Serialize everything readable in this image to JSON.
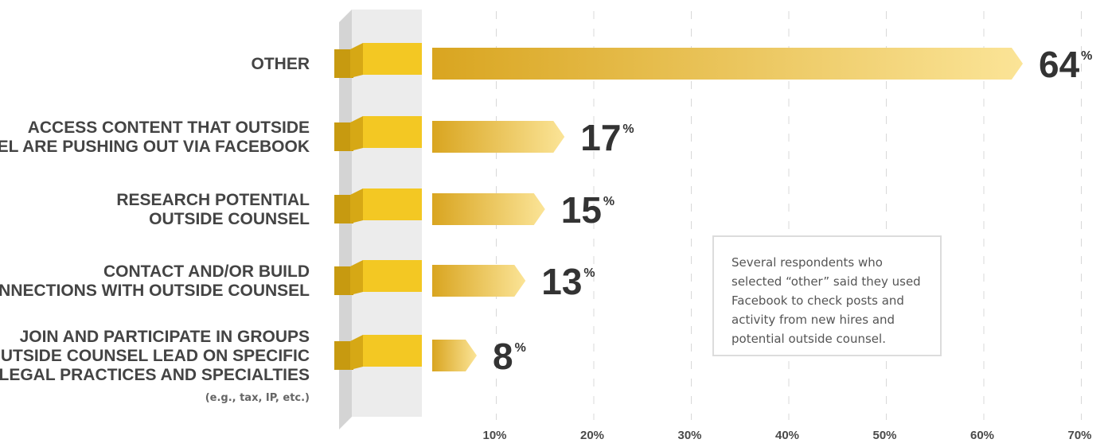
{
  "chart_data": {
    "type": "bar",
    "orientation": "horizontal",
    "categories": [
      {
        "lines": [
          "OTHER"
        ],
        "note": ""
      },
      {
        "lines": [
          "ACCESS CONTENT THAT OUTSIDE",
          "COUNSEL ARE PUSHING OUT VIA FACEBOOK"
        ],
        "note": ""
      },
      {
        "lines": [
          "RESEARCH POTENTIAL",
          "OUTSIDE COUNSEL"
        ],
        "note": ""
      },
      {
        "lines": [
          "CONTACT AND/OR BUILD",
          "CONNECTIONS WITH OUTSIDE COUNSEL"
        ],
        "note": ""
      },
      {
        "lines": [
          "JOIN AND PARTICIPATE IN GROUPS",
          "THAT OUTSIDE COUNSEL LEAD ON SPECIFIC",
          "LEGAL PRACTICES AND SPECIALTIES"
        ],
        "note": "(e.g., tax, IP, etc.)"
      }
    ],
    "values": [
      64,
      17,
      15,
      13,
      8
    ],
    "value_suffix": "%",
    "xlim": [
      0,
      70
    ],
    "x_ticks": [
      "10%",
      "20%",
      "30%",
      "40%",
      "50%",
      "60%",
      "70%"
    ],
    "x_tick_values": [
      10,
      20,
      30,
      40,
      50,
      60,
      70
    ],
    "grid": "vertical dashed",
    "colors": {
      "bar_dark": "#d9a520",
      "bar_light": "#fbe497",
      "stub": "#e8b81a",
      "stub_fold": "#c79a10",
      "column_face": "#ececec",
      "column_shadow": "#d4d4d4",
      "grid": "#d8d8d8"
    }
  },
  "annotation": {
    "text": "Several respondents who selected “other” said they used Facebook to check posts and activity from new hires and potential outside counsel."
  }
}
